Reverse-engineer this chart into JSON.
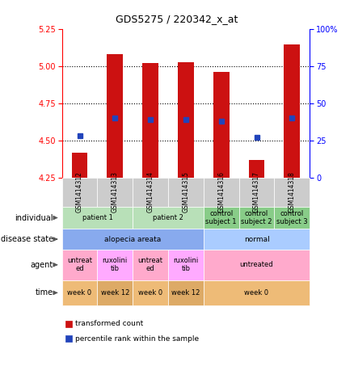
{
  "title": "GDS5275 / 220342_x_at",
  "samples": [
    "GSM1414312",
    "GSM1414313",
    "GSM1414314",
    "GSM1414315",
    "GSM1414316",
    "GSM1414317",
    "GSM1414318"
  ],
  "transformed_counts": [
    4.42,
    5.08,
    5.02,
    5.03,
    4.96,
    4.37,
    5.15
  ],
  "percentile_ranks": [
    28,
    40,
    39,
    39,
    38,
    27,
    40
  ],
  "ylim_left": [
    4.25,
    5.25
  ],
  "ylim_right": [
    0,
    100
  ],
  "yticks_left": [
    4.25,
    4.5,
    4.75,
    5.0,
    5.25
  ],
  "yticks_right": [
    0,
    25,
    50,
    75,
    100
  ],
  "ytick_right_labels": [
    "0",
    "25",
    "50",
    "75",
    "100%"
  ],
  "bar_color": "#cc1111",
  "dot_color": "#2244bb",
  "bar_bottom": 4.25,
  "gridlines": [
    4.5,
    4.75,
    5.0
  ],
  "sample_row_color": "#cccccc",
  "annotation_rows": [
    {
      "label": "individual",
      "groups": [
        {
          "span": [
            0,
            1
          ],
          "text": "patient 1",
          "color": "#b8e0b8"
        },
        {
          "span": [
            2,
            3
          ],
          "text": "patient 2",
          "color": "#b8e0b8"
        },
        {
          "span": [
            4,
            4
          ],
          "text": "control\nsubject 1",
          "color": "#88cc88"
        },
        {
          "span": [
            5,
            5
          ],
          "text": "control\nsubject 2",
          "color": "#88cc88"
        },
        {
          "span": [
            6,
            6
          ],
          "text": "control\nsubject 3",
          "color": "#88cc88"
        }
      ]
    },
    {
      "label": "disease state",
      "groups": [
        {
          "span": [
            0,
            3
          ],
          "text": "alopecia areata",
          "color": "#88aaee"
        },
        {
          "span": [
            4,
            6
          ],
          "text": "normal",
          "color": "#aaccff"
        }
      ]
    },
    {
      "label": "agent",
      "groups": [
        {
          "span": [
            0,
            0
          ],
          "text": "untreat\ned",
          "color": "#ffaacc"
        },
        {
          "span": [
            1,
            1
          ],
          "text": "ruxolini\ntib",
          "color": "#ffaaff"
        },
        {
          "span": [
            2,
            2
          ],
          "text": "untreat\ned",
          "color": "#ffaacc"
        },
        {
          "span": [
            3,
            3
          ],
          "text": "ruxolini\ntib",
          "color": "#ffaaff"
        },
        {
          "span": [
            4,
            6
          ],
          "text": "untreated",
          "color": "#ffaacc"
        }
      ]
    },
    {
      "label": "time",
      "groups": [
        {
          "span": [
            0,
            0
          ],
          "text": "week 0",
          "color": "#eebb77"
        },
        {
          "span": [
            1,
            1
          ],
          "text": "week 12",
          "color": "#ddaa66"
        },
        {
          "span": [
            2,
            2
          ],
          "text": "week 0",
          "color": "#eebb77"
        },
        {
          "span": [
            3,
            3
          ],
          "text": "week 12",
          "color": "#ddaa66"
        },
        {
          "span": [
            4,
            6
          ],
          "text": "week 0",
          "color": "#eebb77"
        }
      ]
    }
  ],
  "legend": [
    {
      "color": "#cc1111",
      "label": "transformed count"
    },
    {
      "color": "#2244bb",
      "label": "percentile rank within the sample"
    }
  ]
}
